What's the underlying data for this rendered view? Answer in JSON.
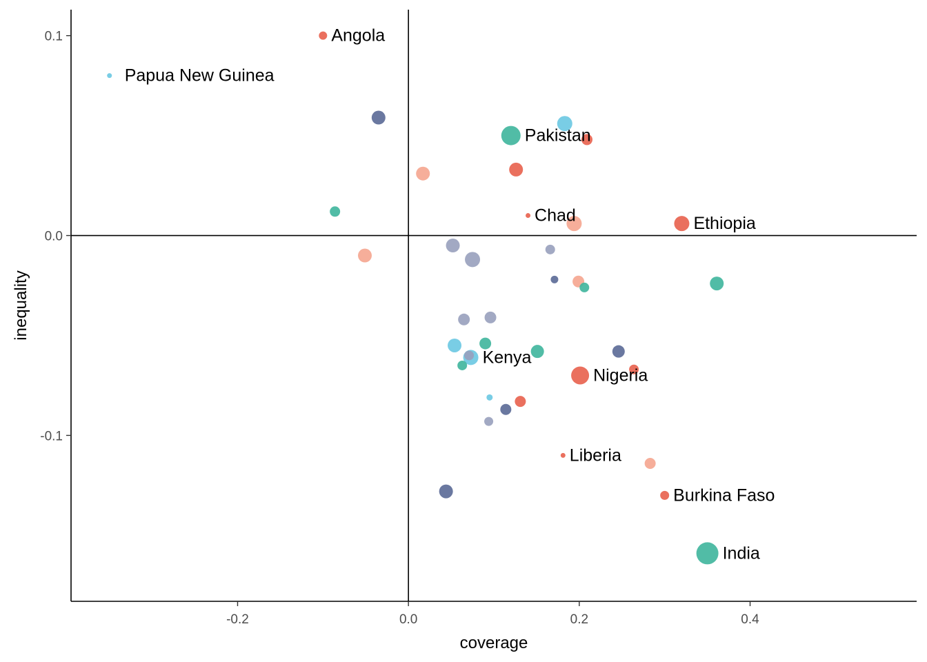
{
  "colors": {
    "red": "#e8604c",
    "teal": "#3eb59c",
    "salmon": "#f5a58f",
    "navy": "#5a6996",
    "lightblue": "#6ac8e2",
    "grayblue": "#98a0bd"
  },
  "chart_data": {
    "type": "scatter",
    "title": "",
    "xlabel": "coverage",
    "ylabel": "inequality",
    "xlim": [
      -0.395,
      0.595
    ],
    "ylim": [
      -0.183,
      0.113
    ],
    "xticks": [
      -0.2,
      0.0,
      0.2,
      0.4
    ],
    "xtick_labels": [
      "-0.2",
      "0.0",
      "0.2",
      "0.4"
    ],
    "yticks": [
      -0.1,
      0.0,
      0.1
    ],
    "ytick_labels": [
      "-0.1",
      "0.0",
      "0.1"
    ],
    "grid": false,
    "reference_lines": {
      "x": 0,
      "y": 0
    },
    "points": [
      {
        "x": -0.1,
        "y": 0.1,
        "size": 6,
        "color": "red",
        "label": "Angola"
      },
      {
        "x": -0.35,
        "y": 0.08,
        "size": 3.5,
        "color": "lightblue",
        "label": "Papua New Guinea"
      },
      {
        "x": -0.035,
        "y": 0.059,
        "size": 10,
        "color": "navy"
      },
      {
        "x": 0.183,
        "y": 0.056,
        "size": 11,
        "color": "lightblue"
      },
      {
        "x": 0.12,
        "y": 0.05,
        "size": 14,
        "color": "teal",
        "label": "Pakistan"
      },
      {
        "x": 0.209,
        "y": 0.048,
        "size": 8,
        "color": "red"
      },
      {
        "x": 0.126,
        "y": 0.033,
        "size": 10,
        "color": "red"
      },
      {
        "x": 0.017,
        "y": 0.031,
        "size": 10,
        "color": "salmon"
      },
      {
        "x": -0.086,
        "y": 0.012,
        "size": 7.5,
        "color": "teal"
      },
      {
        "x": 0.14,
        "y": 0.01,
        "size": 3.5,
        "color": "red",
        "label": "Chad"
      },
      {
        "x": 0.194,
        "y": 0.006,
        "size": 11,
        "color": "salmon"
      },
      {
        "x": 0.32,
        "y": 0.006,
        "size": 11,
        "color": "red",
        "label": "Ethiopia"
      },
      {
        "x": 0.052,
        "y": -0.005,
        "size": 10,
        "color": "grayblue"
      },
      {
        "x": 0.166,
        "y": -0.007,
        "size": 7,
        "color": "grayblue"
      },
      {
        "x": -0.051,
        "y": -0.01,
        "size": 10,
        "color": "salmon"
      },
      {
        "x": 0.075,
        "y": -0.012,
        "size": 11,
        "color": "grayblue"
      },
      {
        "x": 0.171,
        "y": -0.022,
        "size": 5.5,
        "color": "navy"
      },
      {
        "x": 0.199,
        "y": -0.023,
        "size": 8.5,
        "color": "salmon"
      },
      {
        "x": 0.206,
        "y": -0.026,
        "size": 7,
        "color": "teal"
      },
      {
        "x": 0.361,
        "y": -0.024,
        "size": 10,
        "color": "teal"
      },
      {
        "x": 0.065,
        "y": -0.042,
        "size": 8.5,
        "color": "grayblue"
      },
      {
        "x": 0.096,
        "y": -0.041,
        "size": 8.5,
        "color": "grayblue"
      },
      {
        "x": 0.054,
        "y": -0.055,
        "size": 10,
        "color": "lightblue"
      },
      {
        "x": 0.09,
        "y": -0.054,
        "size": 8.5,
        "color": "teal"
      },
      {
        "x": 0.151,
        "y": -0.058,
        "size": 9.5,
        "color": "teal"
      },
      {
        "x": 0.246,
        "y": -0.058,
        "size": 9,
        "color": "navy"
      },
      {
        "x": 0.073,
        "y": -0.061,
        "size": 11,
        "color": "lightblue",
        "label": "Kenya"
      },
      {
        "x": 0.071,
        "y": -0.06,
        "size": 7,
        "color": "grayblue"
      },
      {
        "x": 0.063,
        "y": -0.065,
        "size": 7,
        "color": "teal"
      },
      {
        "x": 0.264,
        "y": -0.067,
        "size": 7,
        "color": "red"
      },
      {
        "x": 0.201,
        "y": -0.07,
        "size": 13,
        "color": "red",
        "label": "Nigeria"
      },
      {
        "x": 0.095,
        "y": -0.081,
        "size": 4.5,
        "color": "lightblue"
      },
      {
        "x": 0.131,
        "y": -0.083,
        "size": 8,
        "color": "red"
      },
      {
        "x": 0.114,
        "y": -0.087,
        "size": 8,
        "color": "navy"
      },
      {
        "x": 0.094,
        "y": -0.093,
        "size": 6.5,
        "color": "grayblue"
      },
      {
        "x": 0.181,
        "y": -0.11,
        "size": 3.5,
        "color": "red",
        "label": "Liberia"
      },
      {
        "x": 0.283,
        "y": -0.114,
        "size": 8,
        "color": "salmon"
      },
      {
        "x": 0.044,
        "y": -0.128,
        "size": 10,
        "color": "navy"
      },
      {
        "x": 0.3,
        "y": -0.13,
        "size": 6.5,
        "color": "red",
        "label": "Burkina Faso"
      },
      {
        "x": 0.35,
        "y": -0.159,
        "size": 16,
        "color": "teal",
        "label": "India"
      }
    ]
  }
}
